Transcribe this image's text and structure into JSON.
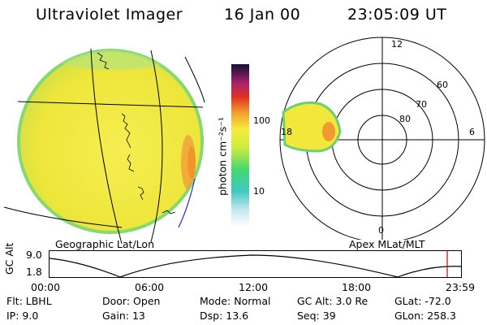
{
  "header": {
    "instrument": "Ultraviolet Imager",
    "date": "16 Jan 00",
    "time": "23:05:09 UT"
  },
  "colorbar": {
    "unit_label": "photon cm⁻²s⁻¹",
    "ticks": [
      "100",
      "10"
    ]
  },
  "geo_panel": {
    "label": "Geographic Lat/Lon"
  },
  "polar_panel": {
    "label": "Apex MLat/MLT",
    "lat_labels": [
      "60",
      "70",
      "80"
    ],
    "mlt_labels": [
      "12",
      "18",
      "6",
      "0"
    ]
  },
  "orbit": {
    "ylabel": "GC Alt",
    "yticks": [
      "9.0",
      "1.8"
    ],
    "xticks": [
      "00:00",
      "06:00",
      "12:00",
      "18:00",
      "23:59"
    ]
  },
  "status": {
    "row1": [
      {
        "key": "Flt:",
        "value": "LBHL"
      },
      {
        "key": "Door:",
        "value": "Open"
      },
      {
        "key": "Mode:",
        "value": "Normal"
      },
      {
        "key": "GC Alt:",
        "value": "3.0 Re"
      },
      {
        "key": "GLat:",
        "value": "-72.0"
      }
    ],
    "row2": [
      {
        "key": "IP:",
        "value": "9.0"
      },
      {
        "key": "Gain:",
        "value": "13"
      },
      {
        "key": "Dsp:",
        "value": "13.6"
      },
      {
        "key": "Seq:",
        "value": "39"
      },
      {
        "key": "GLon:",
        "value": "258.3"
      }
    ]
  },
  "colors": {
    "disk_fill": "#f2ea3c",
    "disk_edge": "#7cd86a",
    "orbit_marker": "#cc0000"
  }
}
